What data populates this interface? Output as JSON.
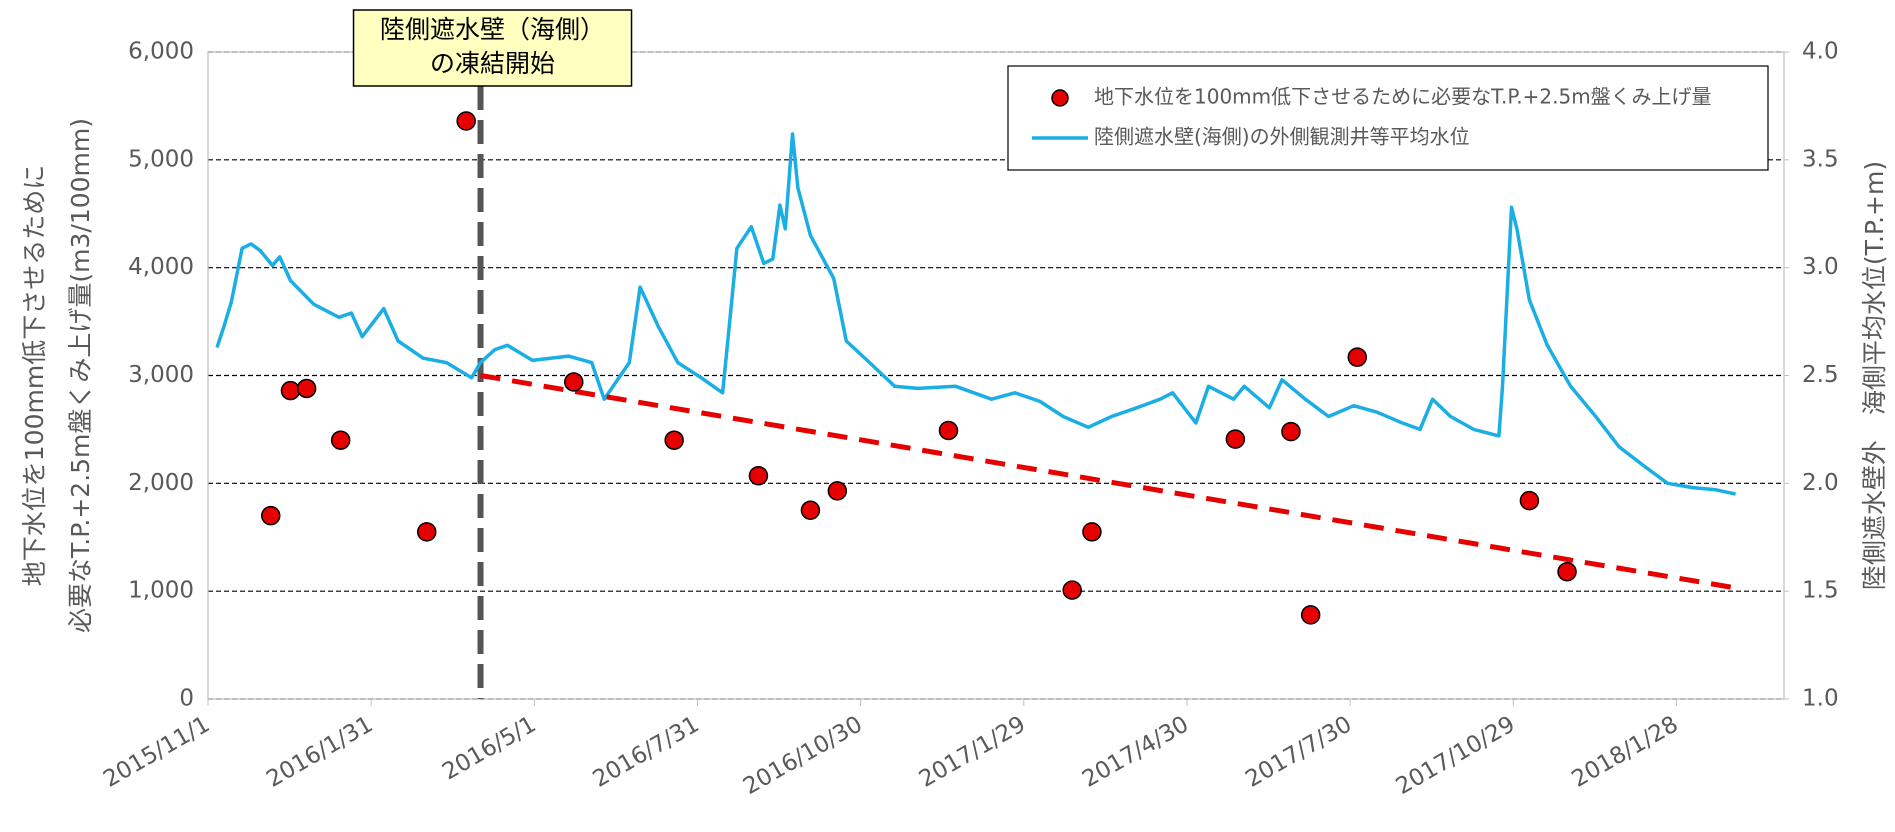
{
  "chart_data": {
    "type": "combo",
    "ylabel": [
      "地下水位を100mm低下させるために",
      "必要なT.P.+2.5m盤くみ上げ量(m3/100mm)"
    ],
    "y2label": "陸側遮水壁外　海側平均水位(T.P.+m)",
    "annotation": {
      "text": [
        "陸側遮水壁（海側）",
        "の凍結開始"
      ],
      "x": "2016/4/1",
      "color": "#555555"
    },
    "xlim": [
      "2015/11/1",
      "2018/3/29"
    ],
    "xticks": [
      "2015/11/1",
      "2016/1/31",
      "2016/5/1",
      "2016/7/31",
      "2016/10/30",
      "2017/1/29",
      "2017/4/30",
      "2017/7/30",
      "2017/10/29",
      "2018/1/28"
    ],
    "ylim": [
      0,
      6000
    ],
    "yticks": [
      0,
      {
        "value": 1000,
        "label": "1,000"
      },
      {
        "value": 2000,
        "label": "2,000"
      },
      {
        "value": 3000,
        "label": "3,000"
      },
      {
        "value": 4000,
        "label": "4,000"
      },
      {
        "value": 5000,
        "label": "5,000"
      },
      {
        "value": 6000,
        "label": "6,000"
      }
    ],
    "y2lim": [
      1.0,
      4.0
    ],
    "y2ticks": [
      {
        "value": 1.0,
        "label": "1.0"
      },
      1.5,
      {
        "value": 2.0,
        "label": "2.0"
      },
      2.5,
      {
        "value": 3.0,
        "label": "3.0"
      },
      3.5,
      {
        "value": 4.0,
        "label": "4.0"
      }
    ],
    "grid": true,
    "legend": "upper right",
    "series": [
      {
        "name": "地下水位を100mm低下させるために必要なT.P.+2.5m盤くみ上げ量",
        "type": "scatter",
        "color": "#e60000",
        "x": [
          "2015/12/6",
          "2015/12/17",
          "2015/12/26",
          "2016/1/14",
          "2016/3/2",
          "2016/3/24",
          "2016/5/23",
          "2016/7/18",
          "2016/9/3",
          "2016/10/2",
          "2016/10/17",
          "2016/12/18",
          "2017/2/25",
          "2017/3/8",
          "2017/5/27",
          "2017/6/27",
          "2017/7/8",
          "2017/8/3",
          "2017/11/7",
          "2017/11/28"
        ],
        "values": [
          1700,
          2860,
          2880,
          2400,
          1550,
          5360,
          2940,
          2400,
          2070,
          1750,
          1930,
          2490,
          1010,
          1550,
          2410,
          2480,
          780,
          3170,
          1840,
          1180
        ]
      },
      {
        "name": "陸側遮水壁(海側)の外側観測井等平均水位",
        "type": "line",
        "axis": "y2",
        "color": "#1aaee5",
        "x": [
          "2015/11/6",
          "2015/11/10",
          "2015/11/14",
          "2015/11/20",
          "2015/11/25",
          "2015/11/30",
          "2015/12/7",
          "2015/12/11",
          "2015/12/17",
          "2015/12/30",
          "2016/1/13",
          "2016/1/20",
          "2016/1/26",
          "2016/2/7",
          "2016/2/15",
          "2016/2/29",
          "2016/3/13",
          "2016/3/27",
          "2016/4/1",
          "2016/4/9",
          "2016/4/16",
          "2016/4/30",
          "2016/5/20",
          "2016/6/2",
          "2016/6/9",
          "2016/6/23",
          "2016/6/29",
          "2016/7/9",
          "2016/7/20",
          "2016/8/2",
          "2016/8/14",
          "2016/8/17",
          "2016/8/22",
          "2016/8/30",
          "2016/9/6",
          "2016/9/11",
          "2016/9/15",
          "2016/9/18",
          "2016/9/22",
          "2016/9/25",
          "2016/10/2",
          "2016/10/15",
          "2016/10/22",
          "2016/11/4",
          "2016/11/18",
          "2016/12/1",
          "2016/12/22",
          "2017/1/11",
          "2017/1/24",
          "2017/2/7",
          "2017/2/20",
          "2017/3/6",
          "2017/3/19",
          "2017/4/2",
          "2017/4/15",
          "2017/4/22",
          "2017/5/5",
          "2017/5/12",
          "2017/5/26",
          "2017/6/1",
          "2017/6/15",
          "2017/6/22",
          "2017/7/5",
          "2017/7/18",
          "2017/8/1",
          "2017/8/14",
          "2017/8/28",
          "2017/9/7",
          "2017/9/14",
          "2017/9/24",
          "2017/10/7",
          "2017/10/21",
          "2017/10/23",
          "2017/10/28",
          "2017/10/31",
          "2017/11/7",
          "2017/11/17",
          "2017/11/30",
          "2017/12/14",
          "2017/12/27",
          "2018/1/10",
          "2018/1/23",
          "2018/2/6",
          "2018/2/19",
          "2018/3/2"
        ],
        "values": [
          2.63,
          2.73,
          2.84,
          3.09,
          3.11,
          3.08,
          3.01,
          3.05,
          2.94,
          2.83,
          2.77,
          2.79,
          2.68,
          2.81,
          2.66,
          2.58,
          2.56,
          2.49,
          2.56,
          2.62,
          2.64,
          2.57,
          2.59,
          2.56,
          2.39,
          2.56,
          2.91,
          2.73,
          2.56,
          2.49,
          2.42,
          2.67,
          3.09,
          3.19,
          3.02,
          3.04,
          3.29,
          3.18,
          3.62,
          3.37,
          3.15,
          2.95,
          2.66,
          2.56,
          2.45,
          2.44,
          2.45,
          2.39,
          2.42,
          2.38,
          2.31,
          2.26,
          2.31,
          2.35,
          2.39,
          2.42,
          2.28,
          2.45,
          2.39,
          2.45,
          2.35,
          2.48,
          2.39,
          2.31,
          2.36,
          2.33,
          2.28,
          2.25,
          2.39,
          2.31,
          2.25,
          2.22,
          2.45,
          3.28,
          3.18,
          2.85,
          2.64,
          2.45,
          2.31,
          2.17,
          2.08,
          2.0,
          1.98,
          1.97,
          1.95
        ]
      },
      {
        "type": "trend",
        "color": "#e60000",
        "x": [
          "2016/4/1",
          "2018/3/2"
        ],
        "values": [
          3000,
          1030
        ]
      }
    ]
  }
}
